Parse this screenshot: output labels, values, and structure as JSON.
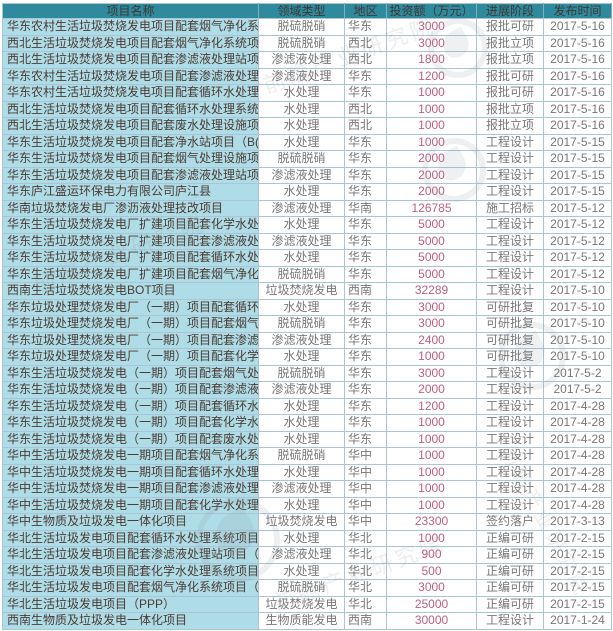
{
  "watermark": {
    "text": "前瞻产业研究院"
  },
  "colors": {
    "header_bg": "#2f8a9e",
    "header_text": "#3d3833",
    "name_col_bg": "#aedce7",
    "name_col_text": "#4c3b33",
    "muted_text": "#777777",
    "investment_text": "#bc5f80",
    "grid_border": "#aac5d5"
  },
  "table": {
    "columns": [
      {
        "key": "project-name",
        "label": "项目名称"
      },
      {
        "key": "field-type",
        "label": "领域类型"
      },
      {
        "key": "region",
        "label": "地区"
      },
      {
        "key": "investment",
        "label": "投资额（万元）"
      },
      {
        "key": "stage",
        "label": "进展阶段"
      },
      {
        "key": "publish-date",
        "label": "发布时间"
      }
    ],
    "rows": [
      [
        "华东农村生活垃圾焚烧发电项目配套烟气净化系",
        "脱硫脱硝",
        "华东",
        "3000",
        "报批可研",
        "2017-5-16"
      ],
      [
        "西北生活垃圾焚烧发电项目配套烟气净化系统项",
        "脱硫脱硝",
        "西北",
        "3000",
        "报批立项",
        "2017-5-16"
      ],
      [
        "西北生活垃圾焚烧发电项目配套渗滤液处理站项",
        "渗滤液处理",
        "西北",
        "1800",
        "报批立项",
        "2017-5-16"
      ],
      [
        "华东农村生活垃圾焚烧发电项目配套渗滤液处理",
        "渗滤液处理",
        "华东",
        "1200",
        "报批可研",
        "2017-5-16"
      ],
      [
        "华东农村生活垃圾焚烧发电项目配套循环水处理",
        "水处理",
        "华东",
        "1000",
        "报批可研",
        "2017-5-16"
      ],
      [
        "西北生活垃圾焚烧发电项目配套循环水处理系统",
        "水处理",
        "西北",
        "1000",
        "报批立项",
        "2017-5-16"
      ],
      [
        "西北生活垃圾焚烧发电项目配套废水处理设施项",
        "水处理",
        "西北",
        "1000",
        "报批立项",
        "2017-5-16"
      ],
      [
        "华东生活垃圾焚烧发电项目配套净水站项目（B(",
        "水处理",
        "华东",
        "1000",
        "工程设计",
        "2017-5-15"
      ],
      [
        "华东生活垃圾焚烧发电项目配套烟气处理设施项",
        "脱硫脱硝",
        "华东",
        "2000",
        "工程设计",
        "2017-5-15"
      ],
      [
        "华东生活垃圾焚烧发电项目配套渗滤液处理站项",
        "渗滤液处理",
        "华东",
        "2000",
        "工程设计",
        "2017-5-15"
      ],
      [
        "华东庐江盛运环保电力有限公司庐江县",
        "水处理",
        "华东",
        "2000",
        "工程设计",
        "2017-5-15"
      ],
      [
        "华南垃圾焚烧发电厂渗沥液处理技改项目",
        "渗滤液处理",
        "华南",
        "126785",
        "施工招标",
        "2017-5-12"
      ],
      [
        "华东生活垃圾焚烧发电厂扩建项目配套化学水处",
        "水处理",
        "华东",
        "5000",
        "工程设计",
        "2017-5-12"
      ],
      [
        "华东生活垃圾焚烧发电厂扩建项目配套渗滤液处",
        "渗滤液处理",
        "华东",
        "5000",
        "工程设计",
        "2017-5-12"
      ],
      [
        "华东生活垃圾焚烧发电厂扩建项目配套循环水处",
        "水处理",
        "华东",
        "5000",
        "工程设计",
        "2017-5-12"
      ],
      [
        "华东生活垃圾焚烧发电厂扩建项目配套烟气净化",
        "脱硫脱硝",
        "华东",
        "5000",
        "工程设计",
        "2017-5-12"
      ],
      [
        "西南生活垃圾焚烧发电BOT项目",
        "垃圾焚烧发电",
        "西南",
        "32289",
        "工程设计",
        "2017-5-10"
      ],
      [
        "华东垃圾处理焚烧发电厂（一期）项目配套循环",
        "水处理",
        "华东",
        "3000",
        "可研批复",
        "2017-5-10"
      ],
      [
        "华东垃圾处理焚烧发电厂（一期）项目配套烟气",
        "脱硫脱硝",
        "华东",
        "3000",
        "可研批复",
        "2017-5-10"
      ],
      [
        "华东垃圾处理焚烧发电厂（一期）项目配套渗滤",
        "渗滤液处理",
        "华东",
        "2400",
        "可研批复",
        "2017-5-10"
      ],
      [
        "华东垃圾处理焚烧发电厂（一期）项目配套化学",
        "水处理",
        "华东",
        "1000",
        "可研批复",
        "2017-5-10"
      ],
      [
        "华东生活垃圾焚烧发电（一期）项目配套烟气处",
        "脱硫脱硝",
        "华东",
        "3000",
        "工程设计",
        "2017-5-2"
      ],
      [
        "华东生活垃圾焚烧发电（一期）项目配套渗滤液",
        "渗滤液处理",
        "华东",
        "2000",
        "工程设计",
        "2017-5-2"
      ],
      [
        "华东生活垃圾焚烧发电（一期）项目配套循环水",
        "水处理",
        "华东",
        "1200",
        "工程设计",
        "2017-4-28"
      ],
      [
        "华东生活垃圾焚烧发电（一期）项目配套化学水",
        "水处理",
        "华东",
        "1000",
        "工程设计",
        "2017-4-28"
      ],
      [
        "华东生活垃圾焚烧发电（一期）项目配套废水处",
        "水处理",
        "华东",
        "1000",
        "工程设计",
        "2017-4-28"
      ],
      [
        "华中生活垃圾焚烧发电一期项目配套烟气净化系",
        "脱硫脱硝",
        "华中",
        "1000",
        "工程设计",
        "2017-4-28"
      ],
      [
        "华中生活垃圾焚烧发电一期项目配套循环水处理",
        "水处理",
        "华中",
        "1000",
        "工程设计",
        "2017-4-28"
      ],
      [
        "华中生活垃圾焚烧发电一期项目配套渗滤液处理",
        "渗滤液处理",
        "华中",
        "1000",
        "工程设计",
        "2017-4-28"
      ],
      [
        "华中生活垃圾焚烧发电一期项目配套化学水处理",
        "水处理",
        "华中",
        "1000",
        "工程设计",
        "2017-4-28"
      ],
      [
        "华中生物质及垃圾发电一体化项目",
        "垃圾焚烧发电",
        "华中",
        "23300",
        "签约落户",
        "2017-3-13"
      ],
      [
        "华北生活垃圾发电项目配套循环水处理系统项目",
        "水处理",
        "华北",
        "1000",
        "正编可研",
        "2017-2-15"
      ],
      [
        "华北生活垃圾发电项目配套渗滤液处理站项目（",
        "渗滤液处理",
        "华北",
        "900",
        "正编可研",
        "2017-2-15"
      ],
      [
        "华北生活垃圾发电项目配套化学水处理系统项目",
        "水处理",
        "华北",
        "500",
        "正编可研",
        "2017-2-15"
      ],
      [
        "华北生活垃圾发电项目配套烟气净化系统项目（",
        "脱硫脱硝",
        "华北",
        "3000",
        "正编可研",
        "2017-2-15"
      ],
      [
        "华北生活垃圾发电项目（PPP）",
        "垃圾焚烧发电",
        "华北",
        "25000",
        "正编可研",
        "2017-2-15"
      ],
      [
        "西南生物质及垃圾发电一体化项目",
        "生物质能发电",
        "西南",
        "30000",
        "工程设计",
        "2017-1-24"
      ]
    ]
  }
}
